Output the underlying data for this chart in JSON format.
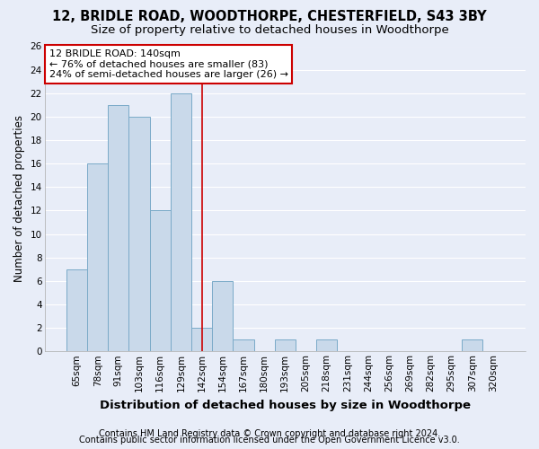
{
  "title1": "12, BRIDLE ROAD, WOODTHORPE, CHESTERFIELD, S43 3BY",
  "title2": "Size of property relative to detached houses in Woodthorpe",
  "xlabel": "Distribution of detached houses by size in Woodthorpe",
  "ylabel": "Number of detached properties",
  "categories": [
    "65sqm",
    "78sqm",
    "91sqm",
    "103sqm",
    "116sqm",
    "129sqm",
    "142sqm",
    "154sqm",
    "167sqm",
    "180sqm",
    "193sqm",
    "205sqm",
    "218sqm",
    "231sqm",
    "244sqm",
    "256sqm",
    "269sqm",
    "282sqm",
    "295sqm",
    "307sqm",
    "320sqm"
  ],
  "values": [
    7,
    16,
    21,
    20,
    12,
    22,
    2,
    6,
    1,
    0,
    1,
    0,
    1,
    0,
    0,
    0,
    0,
    0,
    0,
    1,
    0
  ],
  "bar_color": "#c9d9ea",
  "bar_edge_color": "#7aaac8",
  "highlight_index": 6,
  "highlight_line_color": "#cc0000",
  "annotation_text": "12 BRIDLE ROAD: 140sqm\n← 76% of detached houses are smaller (83)\n24% of semi-detached houses are larger (26) →",
  "annotation_box_color": "#ffffff",
  "annotation_box_edge": "#cc0000",
  "ylim": [
    0,
    26
  ],
  "yticks": [
    0,
    2,
    4,
    6,
    8,
    10,
    12,
    14,
    16,
    18,
    20,
    22,
    24,
    26
  ],
  "background_color": "#e8edf8",
  "grid_color": "#ffffff",
  "footer1": "Contains HM Land Registry data © Crown copyright and database right 2024.",
  "footer2": "Contains public sector information licensed under the Open Government Licence v3.0.",
  "title1_fontsize": 10.5,
  "title2_fontsize": 9.5,
  "xlabel_fontsize": 9.5,
  "ylabel_fontsize": 8.5,
  "tick_fontsize": 7.5,
  "annotation_fontsize": 8,
  "footer_fontsize": 7
}
